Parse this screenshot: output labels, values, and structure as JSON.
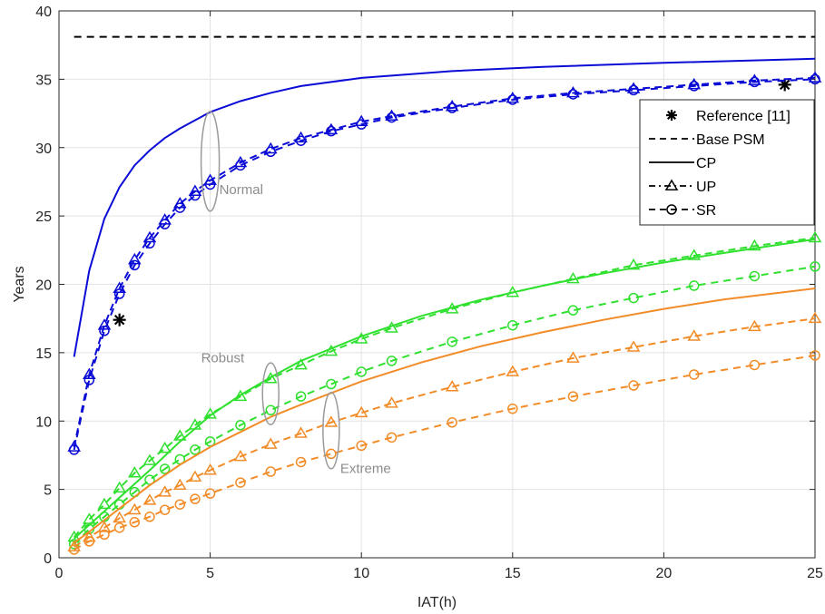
{
  "chart_data": {
    "type": "line",
    "xlabel": "IAT(h)",
    "ylabel": "Years",
    "xlim": [
      0,
      25
    ],
    "ylim": [
      0,
      40
    ],
    "xticks": [
      0,
      5,
      10,
      15,
      20,
      25
    ],
    "yticks": [
      0,
      5,
      10,
      15,
      20,
      25,
      30,
      35,
      40
    ],
    "grid": true,
    "legend_position": "top-right",
    "colors": {
      "normal": "#0b0bd6",
      "robust": "#2fe02f",
      "extreme": "#f28c28",
      "reference": "#000000",
      "base": "#000000"
    },
    "legend": [
      {
        "label": "Reference [11]",
        "style": "star"
      },
      {
        "label": "Base PSM",
        "style": "dashed"
      },
      {
        "label": "CP",
        "style": "solid"
      },
      {
        "label": "UP",
        "style": "dash-dot-triangle"
      },
      {
        "label": "SR",
        "style": "dashed-circle"
      }
    ],
    "annotations": [
      {
        "text": "Normal",
        "ellipse_at": [
          5,
          29
        ],
        "label_at": [
          5.3,
          26.6
        ]
      },
      {
        "text": "Robust",
        "ellipse_at": [
          7,
          12
        ],
        "label_at": [
          4.7,
          14.3
        ]
      },
      {
        "text": "Extreme",
        "ellipse_at": [
          9,
          9.3
        ],
        "label_at": [
          9.3,
          6.2
        ]
      }
    ],
    "series": [
      {
        "name": "Reference [11]",
        "group": "reference",
        "style": "star",
        "x": [
          2,
          24
        ],
        "y": [
          17.4,
          34.6
        ]
      },
      {
        "name": "Base PSM",
        "group": "base",
        "style": "dashed",
        "x": [
          0.5,
          25
        ],
        "y": [
          38.1,
          38.1
        ]
      },
      {
        "name": "CP",
        "group": "normal",
        "style": "solid",
        "x": [
          0.5,
          1,
          1.5,
          2,
          2.5,
          3,
          3.5,
          4,
          5,
          6,
          7,
          8,
          10,
          13,
          16,
          20,
          25
        ],
        "y": [
          14.7,
          21.0,
          24.8,
          27.1,
          28.7,
          29.8,
          30.7,
          31.4,
          32.6,
          33.4,
          34.0,
          34.5,
          35.1,
          35.6,
          35.9,
          36.2,
          36.5
        ]
      },
      {
        "name": "UP",
        "group": "normal",
        "style": "dash-dot-triangle",
        "x": [
          0.5,
          1,
          1.5,
          2,
          2.5,
          3,
          3.5,
          4,
          4.5,
          5,
          6,
          7,
          8,
          9,
          10,
          11,
          13,
          15,
          17,
          19,
          21,
          23,
          25
        ],
        "y": [
          8.1,
          13.4,
          17.0,
          19.7,
          21.8,
          23.4,
          24.7,
          25.9,
          26.8,
          27.6,
          28.9,
          29.9,
          30.7,
          31.3,
          31.9,
          32.3,
          33.0,
          33.6,
          34.0,
          34.3,
          34.6,
          34.9,
          35.1
        ]
      },
      {
        "name": "SR",
        "group": "normal",
        "style": "dashed-circle",
        "x": [
          0.5,
          1,
          1.5,
          2,
          2.5,
          3,
          3.5,
          4,
          4.5,
          5,
          6,
          7,
          8,
          9,
          10,
          11,
          13,
          15,
          17,
          19,
          21,
          23,
          25
        ],
        "y": [
          7.9,
          13.0,
          16.6,
          19.3,
          21.4,
          23.0,
          24.4,
          25.6,
          26.5,
          27.3,
          28.7,
          29.7,
          30.5,
          31.2,
          31.7,
          32.2,
          32.9,
          33.5,
          33.9,
          34.2,
          34.5,
          34.8,
          35.0
        ]
      },
      {
        "name": "CP",
        "group": "robust",
        "style": "solid",
        "x": [
          0.5,
          1,
          2,
          3,
          4,
          5,
          6,
          7,
          8,
          10,
          12,
          14,
          16,
          18,
          20,
          22,
          25
        ],
        "y": [
          1.4,
          2.4,
          4.4,
          6.4,
          8.5,
          10.4,
          11.9,
          13.2,
          14.4,
          16.2,
          17.7,
          18.9,
          19.9,
          20.8,
          21.6,
          22.3,
          23.3
        ]
      },
      {
        "name": "UP",
        "group": "robust",
        "style": "dash-dot-triangle",
        "x": [
          0.5,
          1,
          1.5,
          2,
          2.5,
          3,
          3.5,
          4,
          4.5,
          5,
          6,
          7,
          8,
          9,
          10,
          11,
          13,
          15,
          17,
          19,
          21,
          23,
          25
        ],
        "y": [
          1.5,
          2.8,
          3.9,
          5.1,
          6.2,
          7.1,
          8.0,
          8.9,
          9.7,
          10.5,
          11.8,
          13.1,
          14.1,
          15.1,
          16.0,
          16.8,
          18.2,
          19.4,
          20.4,
          21.4,
          22.1,
          22.8,
          23.4
        ]
      },
      {
        "name": "SR",
        "group": "robust",
        "style": "dashed-circle",
        "x": [
          0.5,
          1,
          1.5,
          2,
          2.5,
          3,
          3.5,
          4,
          4.5,
          5,
          6,
          7,
          8,
          9,
          10,
          11,
          13,
          15,
          17,
          19,
          21,
          23,
          25
        ],
        "y": [
          1.0,
          2.1,
          3.0,
          3.9,
          4.8,
          5.7,
          6.5,
          7.2,
          7.9,
          8.5,
          9.7,
          10.8,
          11.8,
          12.7,
          13.6,
          14.4,
          15.8,
          17.0,
          18.1,
          19.0,
          19.9,
          20.6,
          21.3
        ]
      },
      {
        "name": "CP",
        "group": "extreme",
        "style": "solid",
        "x": [
          0.5,
          1,
          2,
          3,
          4,
          5,
          6,
          7,
          8,
          10,
          12,
          14,
          16,
          18,
          20,
          22,
          25
        ],
        "y": [
          1.1,
          1.9,
          3.6,
          5.3,
          6.8,
          8.1,
          9.2,
          10.3,
          11.2,
          12.9,
          14.3,
          15.5,
          16.5,
          17.4,
          18.2,
          18.9,
          19.7
        ]
      },
      {
        "name": "UP",
        "group": "extreme",
        "style": "dash-dot-triangle",
        "x": [
          0.5,
          1,
          1.5,
          2,
          2.5,
          3,
          3.5,
          4,
          4.5,
          5,
          6,
          7,
          8,
          9,
          10,
          11,
          13,
          15,
          17,
          19,
          21,
          23,
          25
        ],
        "y": [
          0.8,
          1.5,
          2.2,
          2.9,
          3.5,
          4.2,
          4.8,
          5.3,
          5.9,
          6.4,
          7.4,
          8.3,
          9.1,
          9.9,
          10.6,
          11.3,
          12.5,
          13.6,
          14.6,
          15.4,
          16.2,
          16.9,
          17.5
        ]
      },
      {
        "name": "SR",
        "group": "extreme",
        "style": "dashed-circle",
        "x": [
          0.5,
          1,
          1.5,
          2,
          2.5,
          3,
          3.5,
          4,
          4.5,
          5,
          6,
          7,
          8,
          9,
          10,
          11,
          13,
          15,
          17,
          19,
          21,
          23,
          25
        ],
        "y": [
          0.6,
          1.2,
          1.7,
          2.2,
          2.6,
          3.0,
          3.5,
          3.9,
          4.3,
          4.7,
          5.5,
          6.3,
          7.0,
          7.6,
          8.2,
          8.8,
          9.9,
          10.9,
          11.8,
          12.6,
          13.4,
          14.1,
          14.8
        ]
      }
    ]
  }
}
